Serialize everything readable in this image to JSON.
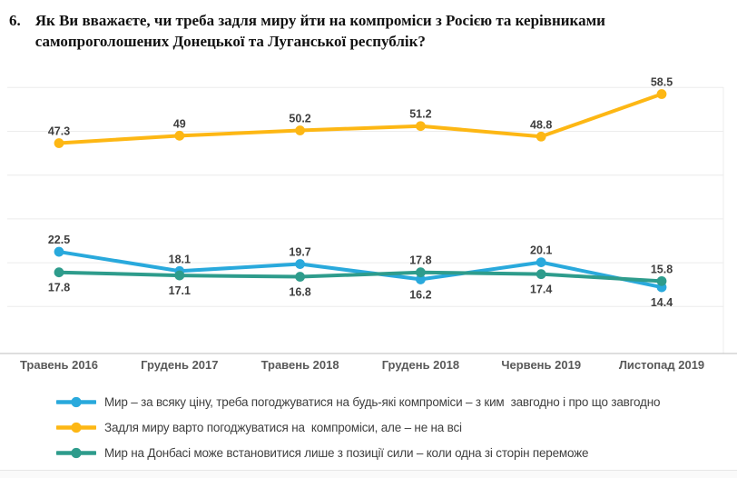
{
  "title": {
    "number": "6.",
    "text": "Як Ви вважаєте, чи треба задля миру йти на компроміси з Росією та керівниками самопроголошених Донецької та Луганської республік?"
  },
  "chart_data": {
    "type": "line",
    "title": "",
    "xlabel": "",
    "ylabel": "",
    "categories": [
      "Травень 2016",
      "Грудень 2017",
      "Травень 2018",
      "Грудень 2018",
      "Червень 2019",
      "Листопад 2019"
    ],
    "series": [
      {
        "name": "Мир – за всяку ціну, треба погоджуватися на будь-які компроміси – з ким  завгодно і про що завгодно",
        "color": "#29A9DC",
        "values": [
          22.5,
          18.1,
          19.7,
          16.2,
          20.1,
          14.4
        ],
        "label_pos": [
          "above",
          "above",
          "above",
          "below",
          "above",
          "below"
        ]
      },
      {
        "name": "Задля миру варто погоджуватися на  компроміси, але – не на всі",
        "color": "#FDB714",
        "values": [
          47.3,
          49,
          50.2,
          51.2,
          48.8,
          58.5
        ],
        "label_pos": [
          "above",
          "above",
          "above",
          "above",
          "above",
          "above"
        ]
      },
      {
        "name": "Мир на Донбасі може встановитися лише з позиції сили – коли одна зі сторін переможе",
        "color": "#2E9C8C",
        "values": [
          17.8,
          17.1,
          16.8,
          17.8,
          17.4,
          15.8
        ],
        "label_pos": [
          "below",
          "below",
          "below",
          "above",
          "below",
          "above"
        ]
      }
    ],
    "ylim": [
      0,
      62
    ],
    "grid": "horizontal",
    "gridline_step": 10,
    "legend_position": "bottom",
    "colors": {
      "grid": "#ececec",
      "axis": "#c9c9c9",
      "tick_label": "#595959",
      "data_label": "#3f3f3f"
    }
  }
}
